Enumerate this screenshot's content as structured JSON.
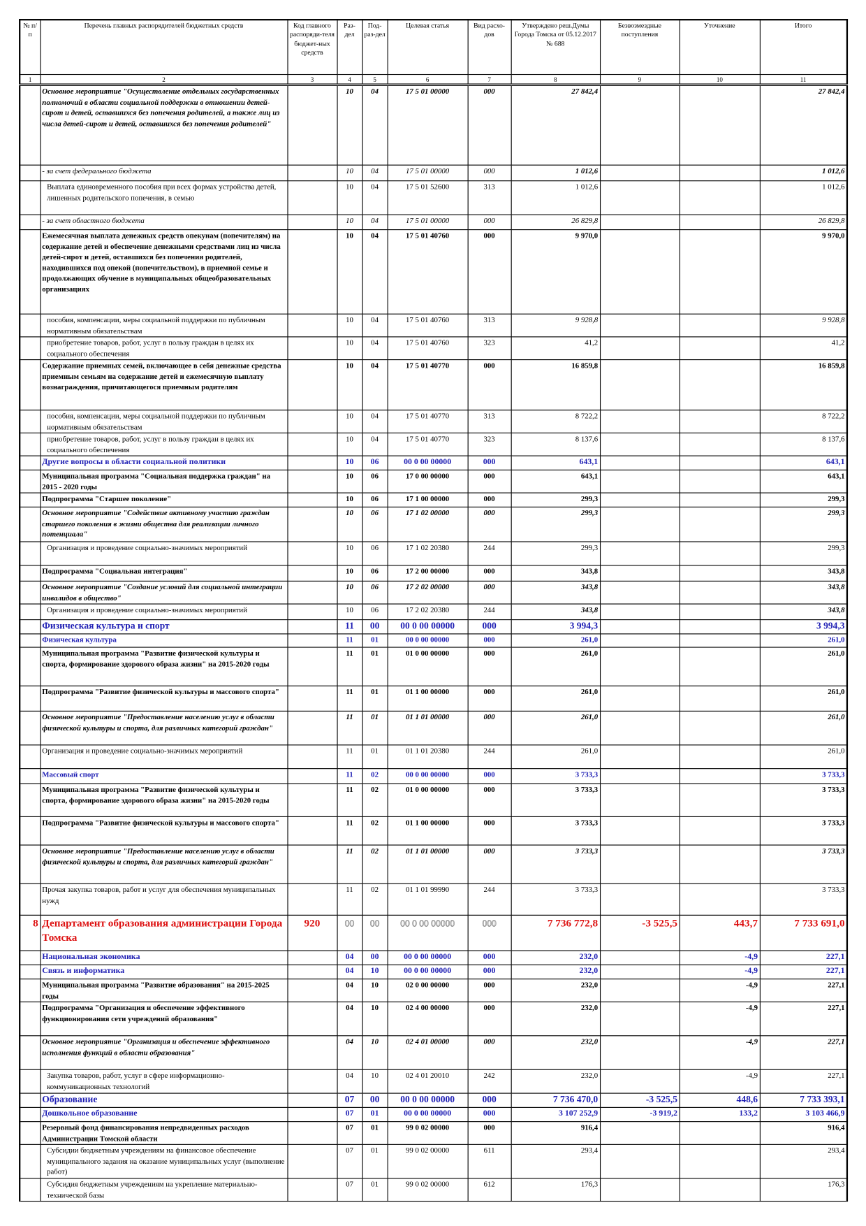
{
  "table": {
    "header": [
      "№ п/п",
      "Перечень главных распорядителей бюджетных средств",
      "Код главного распоряди-теля бюджет-ных средств",
      "Раз-дел",
      "Под-раз-дел",
      "Целевая статья",
      "Вид расхо-дов",
      "Утверждено реш.Думы Города Томска от 05.12.2017 № 688",
      "Безвозмездные поступления",
      "Уточнение",
      "Итого"
    ],
    "column_numbers": [
      "1",
      "2",
      "3",
      "4",
      "5",
      "6",
      "7",
      "8",
      "9",
      "10",
      "11"
    ],
    "rows": [
      [
        null,
        "Основное мероприятие \"Осуществление отдельных государственных полномочий в области социальной поддержки в отношении детей-сирот и детей, оставшихся без попечения родителей, а также лиц из числа детей-сирот и детей, оставшихся без попечения родителей\"",
        null,
        "10",
        "04",
        "17 5 01 00000",
        "000",
        "27 842,4",
        null,
        null,
        "27 842,4"
      ],
      [
        null,
        "- за счет федерального бюджета",
        null,
        "10",
        "04",
        "17 5 01 00000",
        "000",
        "1 012,6",
        null,
        null,
        "1 012,6"
      ],
      [
        null,
        "Выплата единовременного пособия при всех формах устройства детей, лишенных родительского попечения, в семью",
        null,
        "10",
        "04",
        "17 5 01 52600",
        "313",
        "1 012,6",
        null,
        null,
        "1 012,6"
      ],
      [
        null,
        "- за счет областного бюджета",
        null,
        "10",
        "04",
        "17 5 01 00000",
        "000",
        "26 829,8",
        null,
        null,
        "26 829,8"
      ],
      [
        null,
        "Ежемесячная выплата денежных средств опекунам (попечителям) на содержание детей и обеспечение денежными средствами лиц из числа детей-сирот и детей, оставшихся без попечения родителей, находившихся под опекой (попечительством), в приемной семье и продолжающих обучение в муниципальных общеобразовательных организациях",
        null,
        "10",
        "04",
        "17 5 01 40760",
        "000",
        "9 970,0",
        null,
        null,
        "9 970,0"
      ],
      [
        null,
        "пособия, компенсации, меры социальной поддержки по публичным нормативным обязательствам",
        null,
        "10",
        "04",
        "17 5 01 40760",
        "313",
        "9 928,8",
        null,
        null,
        "9 928,8"
      ],
      [
        null,
        "приобретение товаров, работ, услуг в пользу граждан в целях их социального обеспечения",
        null,
        "10",
        "04",
        "17 5 01 40760",
        "323",
        "41,2",
        null,
        null,
        "41,2"
      ],
      [
        null,
        "Содержание приемных семей, включающее в себя денежные средства приемным семьям на содержание детей и ежемесячную выплату вознаграждения, причитающегося приемным родителям",
        null,
        "10",
        "04",
        "17 5 01 40770",
        "000",
        "16 859,8",
        null,
        null,
        "16 859,8"
      ],
      [
        null,
        "пособия, компенсации, меры социальной поддержки по публичным нормативным обязательствам",
        null,
        "10",
        "04",
        "17 5 01 40770",
        "313",
        "8 722,2",
        null,
        null,
        "8 722,2"
      ],
      [
        null,
        "приобретение товаров, работ, услуг в пользу граждан в целях их социального обеспечения",
        null,
        "10",
        "04",
        "17 5 01 40770",
        "323",
        "8 137,6",
        null,
        null,
        "8 137,6"
      ],
      [
        null,
        "Другие вопросы в области социальной политики",
        null,
        "10",
        "06",
        "00 0 00 00000",
        "000",
        "643,1",
        null,
        null,
        "643,1"
      ],
      [
        null,
        "Муниципальная программа \"Социальная поддержка граждан\" на 2015 - 2020 годы",
        null,
        "10",
        "06",
        "17 0 00 00000",
        "000",
        "643,1",
        null,
        null,
        "643,1"
      ],
      [
        null,
        "Подпрограмма \"Старшее поколение\"",
        null,
        "10",
        "06",
        "17 1 00 00000",
        "000",
        "299,3",
        null,
        null,
        "299,3"
      ],
      [
        null,
        "Основное мероприятие \"Содействие активному участию граждан старшего поколения в жизни общества для реализации личного потенциала\"",
        null,
        "10",
        "06",
        "17 1 02 00000",
        "000",
        "299,3",
        null,
        null,
        "299,3"
      ],
      [
        null,
        "Организация и проведение социально-значимых мероприятий",
        null,
        "10",
        "06",
        "17 1 02 20380",
        "244",
        "299,3",
        null,
        null,
        "299,3"
      ],
      [
        null,
        "Подпрограмма \"Социальная интеграция\"",
        null,
        "10",
        "06",
        "17 2 00 00000",
        "000",
        "343,8",
        null,
        null,
        "343,8"
      ],
      [
        null,
        "Основное мероприятие \"Создание условий для социальной интеграции инвалидов в общество\"",
        null,
        "10",
        "06",
        "17 2 02 00000",
        "000",
        "343,8",
        null,
        null,
        "343,8"
      ],
      [
        null,
        "Организация и проведение социально-значимых мероприятий",
        null,
        "10",
        "06",
        "17 2 02 20380",
        "244",
        "343,8",
        null,
        null,
        "343,8"
      ],
      [
        null,
        "Физическая культура и спорт",
        null,
        "11",
        "00",
        "00 0 00 00000",
        "000",
        "3 994,3",
        null,
        null,
        "3 994,3"
      ],
      [
        null,
        "Физическая культура",
        null,
        "11",
        "01",
        "00 0 00 00000",
        "000",
        "261,0",
        null,
        null,
        "261,0"
      ],
      [
        null,
        "Муниципальная программа \"Развитие физической культуры и спорта, формирование здорового образа жизни\" на 2015-2020 годы",
        null,
        "11",
        "01",
        "01 0 00 00000",
        "000",
        "261,0",
        null,
        null,
        "261,0"
      ],
      [
        null,
        "Подпрограмма \"Развитие физической культуры и массового спорта\"",
        null,
        "11",
        "01",
        "01 1 00 00000",
        "000",
        "261,0",
        null,
        null,
        "261,0"
      ],
      [
        null,
        "Основное мероприятие \"Предоставление населению услуг в области физической культуры и спорта, для различных категорий граждан\"",
        null,
        "11",
        "01",
        "01 1 01 00000",
        "000",
        "261,0",
        null,
        null,
        "261,0"
      ],
      [
        null,
        "Организация и проведение социально-значимых мероприятий",
        null,
        "11",
        "01",
        "01 1 01 20380",
        "244",
        "261,0",
        null,
        null,
        "261,0"
      ],
      [
        null,
        "Массовый спорт",
        null,
        "11",
        "02",
        "00 0 00 00000",
        "000",
        "3 733,3",
        null,
        null,
        "3 733,3"
      ],
      [
        null,
        "Муниципальная программа \"Развитие физической культуры и спорта, формирование здорового образа жизни\" на 2015-2020 годы",
        null,
        "11",
        "02",
        "01 0 00 00000",
        "000",
        "3 733,3",
        null,
        null,
        "3 733,3"
      ],
      [
        null,
        "Подпрограмма \"Развитие физической культуры и массового спорта\"",
        null,
        "11",
        "02",
        "01 1 00 00000",
        "000",
        "3 733,3",
        null,
        null,
        "3 733,3"
      ],
      [
        null,
        "Основное мероприятие \"Предоставление населению услуг в области физической культуры и спорта, для различных категорий граждан\"",
        null,
        "11",
        "02",
        "01 1 01 00000",
        "000",
        "3 733,3",
        null,
        null,
        "3 733,3"
      ],
      [
        null,
        "Прочая закупка товаров, работ и услуг для обеспечения муниципальных нужд",
        null,
        "11",
        "02",
        "01 1 01 99990",
        "244",
        "3 733,3",
        null,
        null,
        "3 733,3"
      ],
      [
        "8",
        "Департамент образования администрации Города Томска",
        "920",
        "00",
        "00",
        "00 0 00 00000",
        "000",
        "7 736 772,8",
        "-3 525,5",
        "443,7",
        "7 733 691,0"
      ],
      [
        null,
        "Национальная экономика",
        null,
        "04",
        "00",
        "00 0 00 00000",
        "000",
        "232,0",
        null,
        "-4,9",
        "227,1"
      ],
      [
        null,
        "Связь и информатика",
        null,
        "04",
        "10",
        "00 0 00 00000",
        "000",
        "232,0",
        null,
        "-4,9",
        "227,1"
      ],
      [
        null,
        "Муниципальная программа \"Развитие образования\" на 2015-2025 годы",
        null,
        "04",
        "10",
        "02 0 00 00000",
        "000",
        "232,0",
        null,
        "-4,9",
        "227,1"
      ],
      [
        null,
        "Подпрограмма \"Организация и обеспечение эффективного функционирования сети учреждений образования\"",
        null,
        "04",
        "10",
        "02 4 00 00000",
        "000",
        "232,0",
        null,
        "-4,9",
        "227,1"
      ],
      [
        null,
        "Основное мероприятие \"Организация и обеспечение эффективного исполнения функций в области образования\"",
        null,
        "04",
        "10",
        "02 4 01 00000",
        "000",
        "232,0",
        null,
        "-4,9",
        "227,1"
      ],
      [
        null,
        "Закупка товаров, работ, услуг в сфере информационно-коммуникационных технологий",
        null,
        "04",
        "10",
        "02 4 01 20010",
        "242",
        "232,0",
        null,
        "-4,9",
        "227,1"
      ],
      [
        null,
        "Образование",
        null,
        "07",
        "00",
        "00 0 00 00000",
        "000",
        "7 736 470,0",
        "-3 525,5",
        "448,6",
        "7 733 393,1"
      ],
      [
        null,
        "Дошкольное образование",
        null,
        "07",
        "01",
        "00 0 00 00000",
        "000",
        "3 107 252,9",
        "-3 919,2",
        "133,2",
        "3 103 466,9"
      ],
      [
        null,
        "Резервный фонд финансирования непредвиденных расходов Администрации Томской области",
        null,
        "07",
        "01",
        "99 0 02 00000",
        "000",
        "916,4",
        null,
        null,
        "916,4"
      ],
      [
        null,
        "Субсидии бюджетным учреждениям на финансовое обеспечение муниципального задания на оказание муниципальных услуг (выполнение работ)",
        null,
        "07",
        "01",
        "99 0 02 00000",
        "611",
        "293,4",
        null,
        null,
        "293,4"
      ],
      [
        null,
        "Субсидия бюджетным учреждениям на укрепление материально-технической базы",
        null,
        "07",
        "01",
        "99 0 02 00000",
        "612",
        "176,3",
        null,
        null,
        "176,3"
      ]
    ]
  }
}
